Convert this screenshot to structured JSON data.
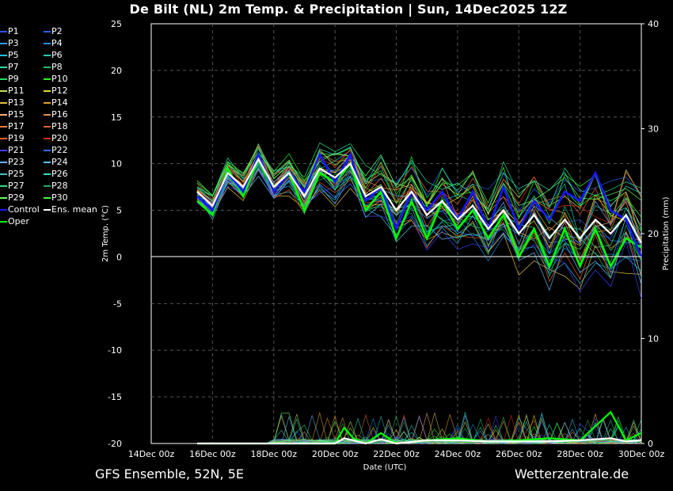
{
  "title": "De Bilt  (NL)  2m Temp. & Precipitation | Sun, 14Dec2025 12Z",
  "footer": {
    "left": "GFS Ensemble, 52N, 5E",
    "right": "Wetterzentrale.de"
  },
  "legend": [
    {
      "label": "P1",
      "color": "#3050ff"
    },
    {
      "label": "P2",
      "color": "#2060ff"
    },
    {
      "label": "P3",
      "color": "#30a0ff"
    },
    {
      "label": "P4",
      "color": "#2090e0"
    },
    {
      "label": "P5",
      "color": "#20c0e0"
    },
    {
      "label": "P6",
      "color": "#20d0b0"
    },
    {
      "label": "P7",
      "color": "#30e0a0"
    },
    {
      "label": "P8",
      "color": "#20c070"
    },
    {
      "label": "P9",
      "color": "#20e060"
    },
    {
      "label": "P10",
      "color": "#20ff20"
    },
    {
      "label": "P11",
      "color": "#c0e060"
    },
    {
      "label": "P12",
      "color": "#e0e020"
    },
    {
      "label": "P13",
      "color": "#e0c040"
    },
    {
      "label": "P14",
      "color": "#e0a020"
    },
    {
      "label": "P15",
      "color": "#f0b070"
    },
    {
      "label": "P16",
      "color": "#e09050"
    },
    {
      "label": "P17",
      "color": "#f08040"
    },
    {
      "label": "P18",
      "color": "#e06030"
    },
    {
      "label": "P19",
      "color": "#f06020"
    },
    {
      "label": "P20",
      "color": "#e03010"
    },
    {
      "label": "P21",
      "color": "#4040ff"
    },
    {
      "label": "P22",
      "color": "#3070ff"
    },
    {
      "label": "P23",
      "color": "#70b0ff"
    },
    {
      "label": "P24",
      "color": "#60c0ff"
    },
    {
      "label": "P25",
      "color": "#40c0c0"
    },
    {
      "label": "P26",
      "color": "#30e0c0"
    },
    {
      "label": "P27",
      "color": "#30e080"
    },
    {
      "label": "P28",
      "color": "#20b060"
    },
    {
      "label": "P29",
      "color": "#60ff60"
    },
    {
      "label": "P30",
      "color": "#40ff40"
    },
    {
      "label": "Control",
      "color": "#1818ff"
    },
    {
      "label": "Ens. mean",
      "color": "#ffffff"
    },
    {
      "label": "Oper",
      "color": "#00ff00"
    }
  ],
  "chart_data": {
    "type": "line",
    "xlabel": "Date (UTC)",
    "ylabel": "2m Temp. (°C)",
    "y2label": "Precipitation (mm)",
    "ylim": [
      -20,
      25
    ],
    "y2lim": [
      0,
      40
    ],
    "y_ticks": [
      25,
      20,
      15,
      10,
      5,
      0,
      -5,
      -10,
      -15,
      -20
    ],
    "y2_ticks": [
      40,
      30,
      20,
      10,
      0
    ],
    "x_ticks": [
      "14Dec 00z",
      "16Dec 00z",
      "18Dec 00z",
      "20Dec 00z",
      "22Dec 00z",
      "24Dec 00z",
      "26Dec 00z",
      "28Dec 00z",
      "30Dec 00z"
    ],
    "x_range_days": [
      0,
      16
    ],
    "grid": true,
    "series": [
      {
        "name": "Control",
        "unit": "°C",
        "color": "#1818ff",
        "x": [
          1.5,
          2,
          2.5,
          3,
          3.5,
          4,
          4.5,
          5,
          5.5,
          6,
          6.5,
          7,
          7.5,
          8,
          8.5,
          9,
          9.5,
          10,
          10.5,
          11,
          11.5,
          12,
          12.5,
          13,
          13.5,
          14,
          14.5,
          15,
          15.5,
          16
        ],
        "y": [
          6.5,
          5,
          9,
          7,
          11,
          7,
          9,
          7,
          11,
          8,
          11,
          6,
          7.5,
          3,
          7,
          5,
          7,
          4,
          7,
          3,
          7.5,
          3,
          6,
          4,
          7,
          6,
          9,
          5,
          4,
          0
        ]
      },
      {
        "name": "Ens. mean",
        "unit": "°C",
        "color": "#ffffff",
        "x": [
          1.5,
          2,
          2.5,
          3,
          3.5,
          4,
          4.5,
          5,
          5.5,
          6,
          6.5,
          7,
          7.5,
          8,
          8.5,
          9,
          9.5,
          10,
          10.5,
          11,
          11.5,
          12,
          12.5,
          13,
          13.5,
          14,
          14.5,
          15,
          15.5,
          16
        ],
        "y": [
          7,
          5.5,
          9,
          7.5,
          10.5,
          7.5,
          9,
          6.5,
          9.5,
          8.5,
          10,
          6.5,
          7.5,
          5,
          7,
          4.5,
          6,
          4,
          5.5,
          3,
          5,
          2.5,
          4.5,
          2,
          4,
          2,
          4,
          2.5,
          4.5,
          1.5
        ]
      },
      {
        "name": "Oper",
        "unit": "°C",
        "color": "#00ff00",
        "x": [
          1.5,
          2,
          2.5,
          3,
          3.5,
          4,
          4.5,
          5,
          5.5,
          6,
          6.5,
          7,
          7.5,
          8,
          8.5,
          9,
          9.5,
          10,
          10.5,
          11,
          11.5,
          12,
          12.5,
          13,
          13.5,
          14,
          14.5,
          15,
          15.5,
          16
        ],
        "y": [
          6,
          4.5,
          9.5,
          6.5,
          10.5,
          7,
          9,
          5,
          9,
          8,
          10,
          5,
          7,
          2,
          6,
          2,
          6,
          3,
          5,
          2,
          4.5,
          0,
          3,
          -1,
          3,
          -1,
          3,
          -1,
          2,
          1
        ]
      },
      {
        "name": "Ens. mean precipitation",
        "unit": "mm",
        "color": "#ffffff",
        "x": [
          1.5,
          4,
          6,
          6.3,
          6.6,
          7,
          7.5,
          8,
          9,
          10,
          11,
          12,
          13,
          14,
          15,
          15.5,
          16
        ],
        "y": [
          0,
          0,
          0,
          0.5,
          0.3,
          0,
          0.4,
          0,
          0.3,
          0.3,
          0.2,
          0.2,
          0.2,
          0.3,
          0.5,
          0.2,
          0.3
        ]
      },
      {
        "name": "Oper precipitation",
        "unit": "mm",
        "color": "#00ff00",
        "x": [
          1.5,
          4,
          5.5,
          6,
          6.3,
          6.6,
          7,
          7.5,
          8,
          9,
          10,
          11,
          12,
          13,
          14,
          15,
          15.5,
          16
        ],
        "y": [
          0,
          0,
          0,
          0,
          1.5,
          0.5,
          0,
          1,
          0,
          0.3,
          0.5,
          0.2,
          0.3,
          0.5,
          0.3,
          3,
          0.3,
          1
        ]
      }
    ]
  }
}
